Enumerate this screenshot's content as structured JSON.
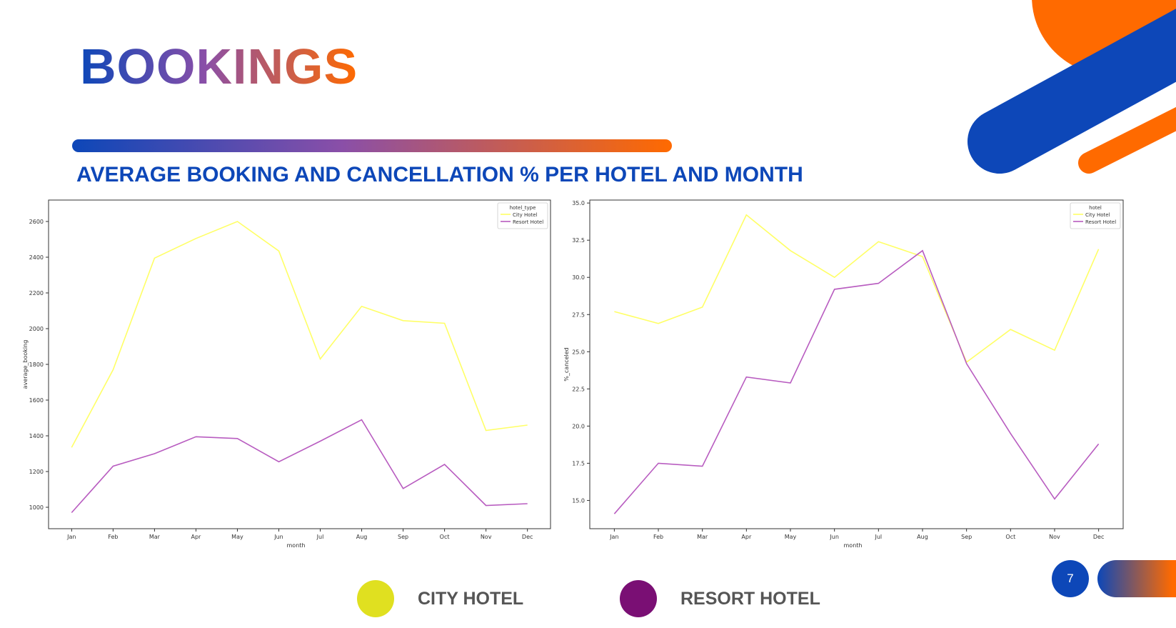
{
  "slide": {
    "title": "BOOKINGS",
    "subtitle": "AVERAGE BOOKING AND CANCELLATION % PER HOTEL AND MONTH",
    "page_number": "7",
    "colors": {
      "primary_blue": "#0d47b8",
      "accent_orange": "#ff6a00",
      "city": "#ffff66",
      "resort": "#b85cc0"
    }
  },
  "legend": [
    {
      "label": "CITY HOTEL",
      "color": "#e0e020"
    },
    {
      "label": "RESORT HOTEL",
      "color": "#7a0f74"
    }
  ],
  "chart_data": [
    {
      "type": "line",
      "xlabel": "month",
      "ylabel": "average_booking",
      "categories": [
        "Jan",
        "Feb",
        "Mar",
        "Apr",
        "May",
        "Jun",
        "Jul",
        "Aug",
        "Sep",
        "Oct",
        "Nov",
        "Dec"
      ],
      "ylim": [
        880,
        2720
      ],
      "yticks": [
        1000,
        1200,
        1400,
        1600,
        1800,
        2000,
        2200,
        2400,
        2600
      ],
      "legend_title": "hotel_type",
      "legend_position": "top-right",
      "grid": false,
      "series": [
        {
          "name": "City Hotel",
          "color": "#ffff66",
          "values": [
            1335,
            1770,
            2395,
            2505,
            2600,
            2435,
            1830,
            2125,
            2045,
            2030,
            1430,
            1460
          ]
        },
        {
          "name": "Resort Hotel",
          "color": "#b85cc0",
          "values": [
            970,
            1230,
            1300,
            1395,
            1385,
            1255,
            1370,
            1490,
            1105,
            1240,
            1010,
            1020
          ]
        }
      ]
    },
    {
      "type": "line",
      "xlabel": "month",
      "ylabel": "%_canceled",
      "categories": [
        "Jan",
        "Feb",
        "Mar",
        "Apr",
        "May",
        "Jun",
        "Jul",
        "Aug",
        "Sep",
        "Oct",
        "Nov",
        "Dec"
      ],
      "ylim": [
        13.1,
        35.2
      ],
      "yticks": [
        "15.0",
        "17.5",
        "20.0",
        "22.5",
        "25.0",
        "27.5",
        "30.0",
        "32.5",
        "35.0"
      ],
      "legend_title": "hotel",
      "legend_position": "top-right",
      "grid": false,
      "series": [
        {
          "name": "City Hotel",
          "color": "#ffff66",
          "values": [
            27.7,
            26.9,
            28.0,
            34.2,
            31.8,
            30.0,
            32.4,
            31.4,
            24.3,
            26.5,
            25.1,
            31.9
          ]
        },
        {
          "name": "Resort Hotel",
          "color": "#b85cc0",
          "values": [
            14.1,
            17.5,
            17.3,
            23.3,
            22.9,
            29.2,
            29.6,
            31.8,
            24.2,
            19.5,
            15.1,
            18.8
          ]
        }
      ]
    }
  ]
}
